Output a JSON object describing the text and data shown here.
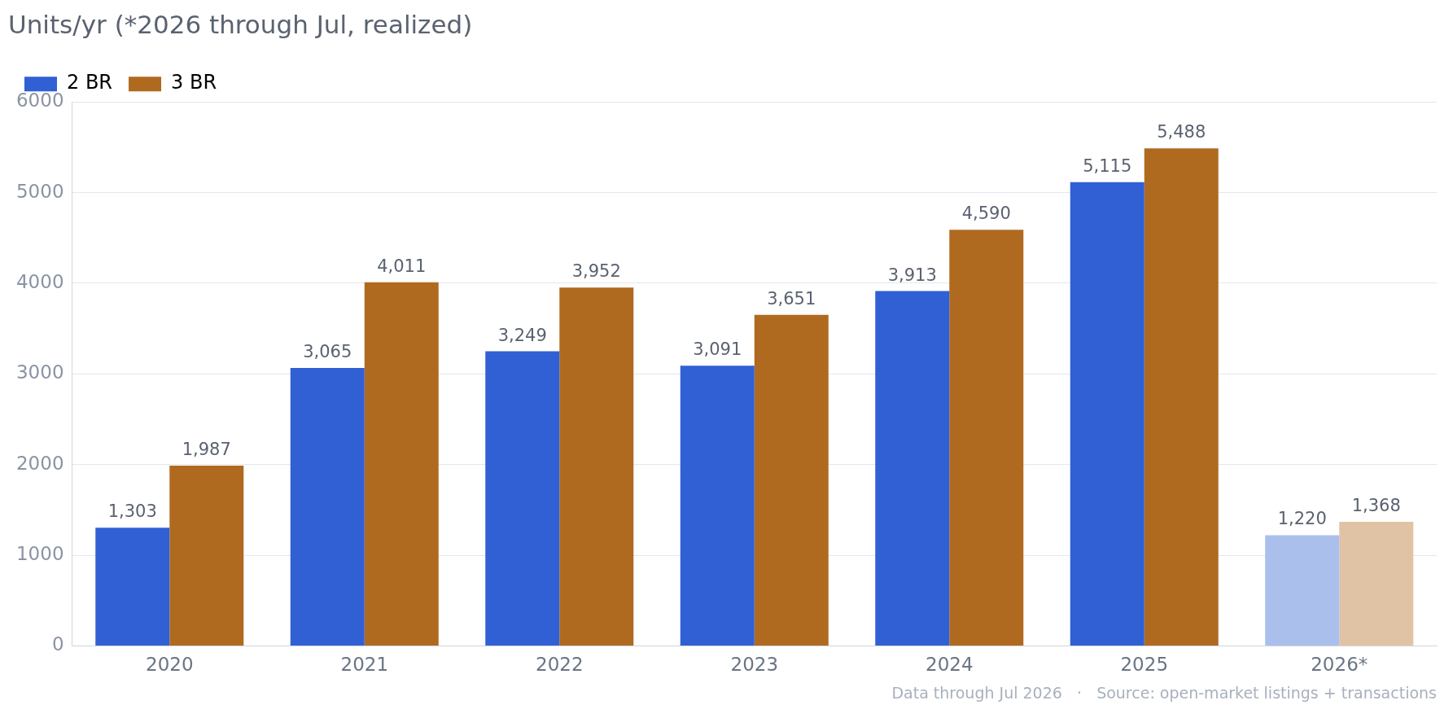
{
  "chart_data": {
    "type": "bar",
    "title": "Units/yr (*2026 through Jul, realized)",
    "categories": [
      "2020",
      "2021",
      "2022",
      "2023",
      "2024",
      "2025",
      "2026*"
    ],
    "series": [
      {
        "name": "2 BR",
        "color": "#3060d4",
        "colors": [
          "#3060d4",
          "#3060d4",
          "#3060d4",
          "#3060d4",
          "#3060d4",
          "#3060d4",
          "#aabfec"
        ],
        "values": [
          1303,
          3065,
          3249,
          3091,
          3913,
          5115,
          1220
        ],
        "value_labels": [
          "1,303",
          "3,065",
          "3,249",
          "3,091",
          "3,913",
          "5,115",
          "1,220"
        ]
      },
      {
        "name": "3 BR",
        "color": "#b06a20",
        "colors": [
          "#b06a20",
          "#b06a20",
          "#b06a20",
          "#b06a20",
          "#b06a20",
          "#b06a20",
          "#e0c3a5"
        ],
        "values": [
          1987,
          4011,
          3952,
          3651,
          4590,
          5488,
          1368
        ],
        "value_labels": [
          "1,987",
          "4,011",
          "3,952",
          "3,651",
          "4,590",
          "5,488",
          "1,368"
        ]
      }
    ],
    "ylim": [
      0,
      6000
    ],
    "yticks": [
      0,
      1000,
      2000,
      3000,
      4000,
      5000,
      6000
    ],
    "grid": "y",
    "legend": "top left",
    "annotations": [
      "Data through Jul 2026   ·   Source: open-market listings + transactions"
    ]
  }
}
